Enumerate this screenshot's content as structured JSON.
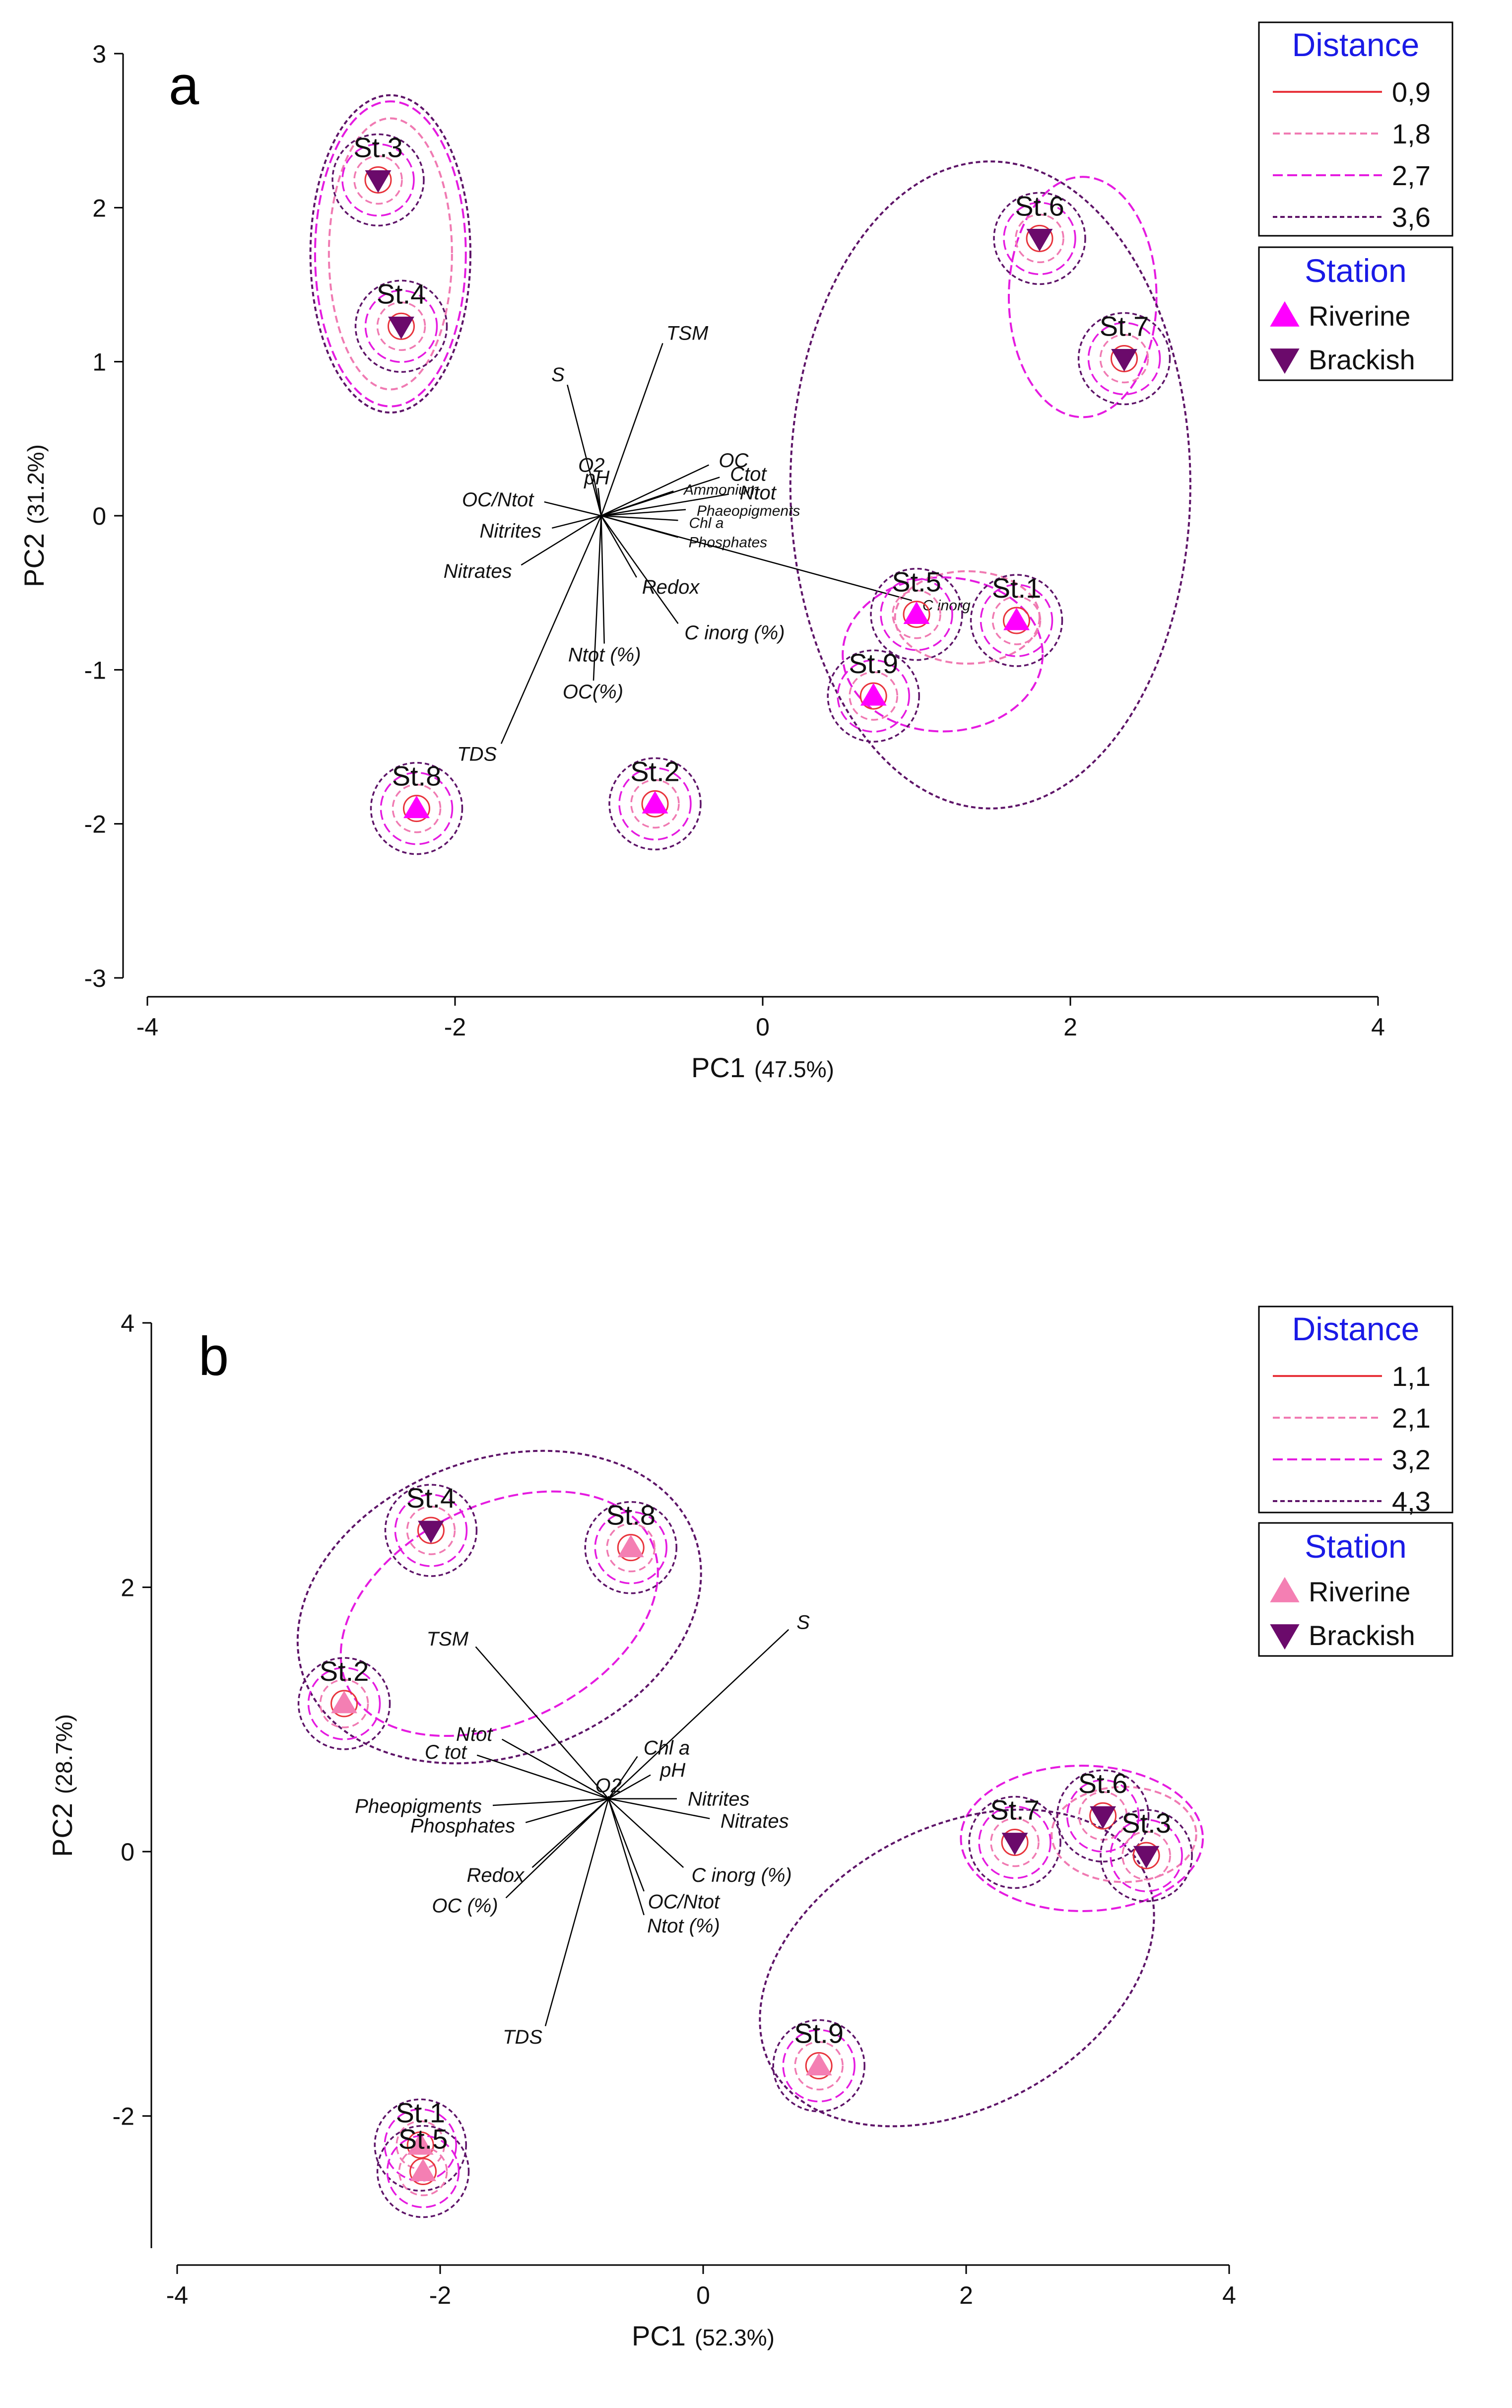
{
  "figure": {
    "colors": {
      "d1": "#e8343c",
      "d2": "#f07ab2",
      "d3": "#e51be0",
      "d4": "#5e1468",
      "riverine_a": "#ff00ff",
      "riverine_b": "#f47fb3",
      "brackish": "#6b0a6b",
      "vector": "#000000"
    }
  },
  "chart_data": [
    {
      "type": "scatter",
      "panel_label": "a",
      "xlabel": "PC1",
      "xlabel_pct": "(47.5%)",
      "ylabel": "PC2",
      "ylabel_pct": "(31.2%)",
      "xlim": [
        -4,
        4
      ],
      "ylim": [
        -3,
        3
      ],
      "xticks": [
        -4,
        -2,
        0,
        2,
        4
      ],
      "yticks": [
        -3,
        -2,
        -1,
        0,
        1,
        2,
        3
      ],
      "xtick_labels": [
        "-4",
        "-2",
        "0",
        "2",
        "4"
      ],
      "ytick_labels": [
        "-3",
        "-2",
        "-1",
        "0",
        "1",
        "2",
        "3"
      ],
      "legend": {
        "distance_title": "Distance",
        "distances": [
          "0,9",
          "1,8",
          "2,7",
          "3,6"
        ],
        "station_title": "Station",
        "stations": [
          "Riverine",
          "Brackish"
        ]
      },
      "points": [
        {
          "label": "St.3",
          "x": -2.5,
          "y": 2.18,
          "type": "Brackish"
        },
        {
          "label": "St.4",
          "x": -2.35,
          "y": 1.23,
          "type": "Brackish"
        },
        {
          "label": "St.6",
          "x": 1.8,
          "y": 1.8,
          "type": "Brackish"
        },
        {
          "label": "St.7",
          "x": 2.35,
          "y": 1.02,
          "type": "Brackish"
        },
        {
          "label": "St.5",
          "x": 1.0,
          "y": -0.64,
          "type": "Riverine"
        },
        {
          "label": "St.1",
          "x": 1.65,
          "y": -0.68,
          "type": "Riverine"
        },
        {
          "label": "St.9",
          "x": 0.72,
          "y": -1.17,
          "type": "Riverine"
        },
        {
          "label": "St.8",
          "x": -2.25,
          "y": -1.9,
          "type": "Riverine"
        },
        {
          "label": "St.2",
          "x": -0.7,
          "y": -1.87,
          "type": "Riverine"
        }
      ],
      "clusters": [
        {
          "level": 2,
          "cx": -2.42,
          "cy": 1.7,
          "rx": 0.4,
          "ry": 0.88
        },
        {
          "level": 3,
          "cx": -2.42,
          "cy": 1.7,
          "rx": 0.49,
          "ry": 0.99
        },
        {
          "level": 4,
          "cx": -2.42,
          "cy": 1.7,
          "rx": 0.52,
          "ry": 1.03
        },
        {
          "level": 3,
          "cx": 2.08,
          "cy": 1.42,
          "rx": 0.48,
          "ry": 0.78
        },
        {
          "level": 3,
          "cx": 1.17,
          "cy": -0.9,
          "rx": 0.65,
          "ry": 0.5
        },
        {
          "level": 2,
          "cx": 1.33,
          "cy": -0.66,
          "rx": 0.47,
          "ry": 0.3
        },
        {
          "level": 4,
          "cx": 1.48,
          "cy": 0.2,
          "rx": 1.3,
          "ry": 2.1
        }
      ],
      "vectors": [
        {
          "label": "S",
          "x": -1.27,
          "y": 0.85
        },
        {
          "label": "TSM",
          "x": -0.65,
          "y": 1.12
        },
        {
          "label": "O2",
          "x": -1.1,
          "y": 0.26
        },
        {
          "label": "pH",
          "x": -1.07,
          "y": 0.18
        },
        {
          "label": "OC/Ntot",
          "x": -1.42,
          "y": 0.09
        },
        {
          "label": "Nitrites",
          "x": -1.37,
          "y": -0.08
        },
        {
          "label": "Nitrates",
          "x": -1.57,
          "y": -0.32
        },
        {
          "label": "OC",
          "x": -0.35,
          "y": 0.33
        },
        {
          "label": "Ctot",
          "x": -0.28,
          "y": 0.25
        },
        {
          "label": "Ntot",
          "x": -0.22,
          "y": 0.14
        },
        {
          "label": "Ammonium",
          "x": -0.58,
          "y": 0.16
        },
        {
          "label": "Phaeopigments",
          "x": -0.5,
          "y": 0.04
        },
        {
          "label": "Chl a",
          "x": -0.55,
          "y": -0.03
        },
        {
          "label": "Phosphates",
          "x": -0.55,
          "y": -0.14
        },
        {
          "label": "Redox",
          "x": -0.82,
          "y": -0.4
        },
        {
          "label": "C inorg (%)",
          "x": -0.55,
          "y": -0.7
        },
        {
          "label": "C inorg",
          "x": 0.97,
          "y": -0.55
        },
        {
          "label": "Ntot (%)",
          "x": -1.03,
          "y": -0.83
        },
        {
          "label": "OC(%)",
          "x": -1.1,
          "y": -1.07
        },
        {
          "label": "TDS",
          "x": -1.7,
          "y": -1.48
        }
      ]
    },
    {
      "type": "scatter",
      "panel_label": "b",
      "xlabel": "PC1",
      "xlabel_pct": "(52.3%)",
      "ylabel": "PC2",
      "ylabel_pct": "(28.7%)",
      "xlim": [
        -4,
        4
      ],
      "ylim": [
        -3,
        4
      ],
      "xticks": [
        -4,
        -2,
        0,
        2,
        4
      ],
      "yticks": [
        -2,
        0,
        2,
        4
      ],
      "xtick_labels": [
        "-4",
        "-2",
        "0",
        "2",
        "4"
      ],
      "ytick_labels": [
        "-2",
        "0",
        "2",
        "4"
      ],
      "legend": {
        "distance_title": "Distance",
        "distances": [
          "1,1",
          "2,1",
          "3,2",
          "4,3"
        ],
        "station_title": "Station",
        "stations": [
          "Riverine",
          "Brackish"
        ]
      },
      "points": [
        {
          "label": "St.4",
          "x": -2.07,
          "y": 2.43,
          "type": "Brackish"
        },
        {
          "label": "St.8",
          "x": -0.55,
          "y": 2.3,
          "type": "Riverine"
        },
        {
          "label": "St.2",
          "x": -2.73,
          "y": 1.12,
          "type": "Riverine"
        },
        {
          "label": "St.7",
          "x": 2.37,
          "y": 0.07,
          "type": "Brackish"
        },
        {
          "label": "St.6",
          "x": 3.04,
          "y": 0.27,
          "type": "Brackish"
        },
        {
          "label": "St.3",
          "x": 3.37,
          "y": -0.03,
          "type": "Brackish"
        },
        {
          "label": "St.9",
          "x": 0.88,
          "y": -1.62,
          "type": "Riverine"
        },
        {
          "label": "St.1",
          "x": -2.15,
          "y": -2.22,
          "type": "Riverine"
        },
        {
          "label": "St.5",
          "x": -2.13,
          "y": -2.42,
          "type": "Riverine"
        }
      ],
      "clusters": [
        {
          "level": 3,
          "cx": -1.55,
          "cy": 1.8,
          "rx": 1.28,
          "ry": 0.82,
          "rotate": -26
        },
        {
          "level": 4,
          "cx": -1.55,
          "cy": 1.85,
          "rx": 1.58,
          "ry": 1.12,
          "rotate": -20
        },
        {
          "level": 2,
          "cx": 3.2,
          "cy": 0.13,
          "rx": 0.55,
          "ry": 0.36
        },
        {
          "level": 3,
          "cx": 2.88,
          "cy": 0.1,
          "rx": 0.92,
          "ry": 0.55
        },
        {
          "level": 4,
          "cx": 1.93,
          "cy": -0.88,
          "rx": 1.6,
          "ry": 1.06,
          "rotate": -28
        }
      ],
      "vectors": [
        {
          "label": "TSM",
          "x": -1.73,
          "y": 1.55
        },
        {
          "label": "S",
          "x": 0.65,
          "y": 1.68
        },
        {
          "label": "Ntot",
          "x": -1.53,
          "y": 0.85
        },
        {
          "label": "C tot",
          "x": -1.72,
          "y": 0.73
        },
        {
          "label": "Chl a",
          "x": -0.5,
          "y": 0.72
        },
        {
          "label": "pH",
          "x": -0.4,
          "y": 0.58
        },
        {
          "label": "O2",
          "x": -0.72,
          "y": 0.42
        },
        {
          "label": "Nitrites",
          "x": -0.2,
          "y": 0.4
        },
        {
          "label": "Nitrates",
          "x": 0.05,
          "y": 0.25
        },
        {
          "label": "Pheopigments",
          "x": -1.6,
          "y": 0.35
        },
        {
          "label": "Phosphates",
          "x": -1.35,
          "y": 0.22
        },
        {
          "label": "Redox",
          "x": -1.3,
          "y": -0.12
        },
        {
          "label": "C inorg (%)",
          "x": -0.15,
          "y": -0.12
        },
        {
          "label": "OC/Ntot",
          "x": -0.45,
          "y": -0.3
        },
        {
          "label": "Ntot (%)",
          "x": -0.45,
          "y": -0.48
        },
        {
          "label": "OC (%)",
          "x": -1.5,
          "y": -0.35
        },
        {
          "label": "TDS",
          "x": -1.2,
          "y": -1.32
        }
      ]
    }
  ]
}
